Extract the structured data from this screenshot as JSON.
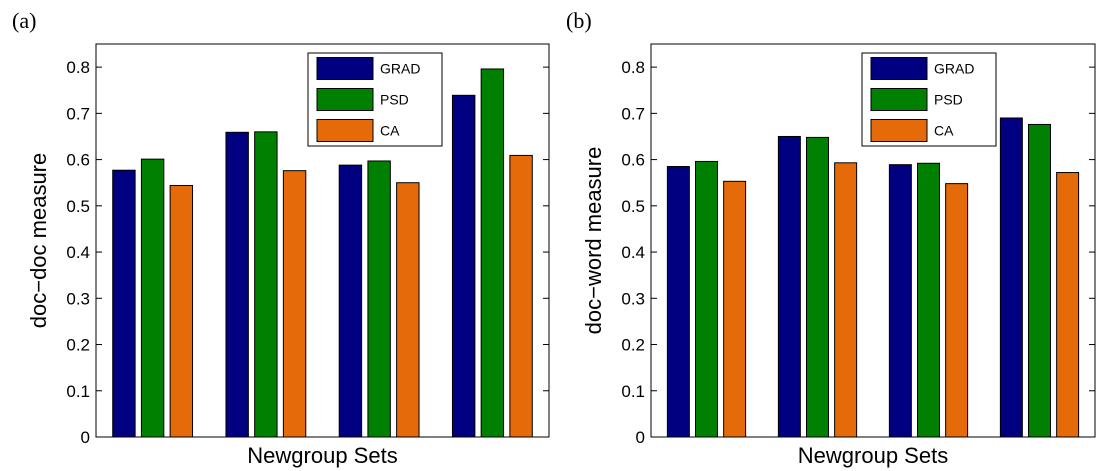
{
  "chart_data": [
    {
      "type": "bar",
      "panel_label": "(a)",
      "xlabel": "Newgroup Sets",
      "ylabel": "doc−doc measure",
      "ylim": [
        0,
        0.85
      ],
      "yticks": [
        "0",
        "0.1",
        "0.2",
        "0.3",
        "0.4",
        "0.5",
        "0.6",
        "0.7",
        "0.8"
      ],
      "categories": [
        "",
        "",
        "",
        ""
      ],
      "legend_position": "top-right",
      "grid": false,
      "series": [
        {
          "name": "GRAD",
          "color": "#000080",
          "values": [
            0.577,
            0.659,
            0.588,
            0.739
          ]
        },
        {
          "name": "PSD",
          "color": "#008000",
          "values": [
            0.601,
            0.66,
            0.597,
            0.796
          ]
        },
        {
          "name": "CA",
          "color": "#E56A0A",
          "values": [
            0.544,
            0.576,
            0.55,
            0.609
          ]
        }
      ]
    },
    {
      "type": "bar",
      "panel_label": "(b)",
      "xlabel": "Newgroup Sets",
      "ylabel": "doc−word measure",
      "ylim": [
        0,
        0.85
      ],
      "yticks": [
        "0",
        "0.1",
        "0.2",
        "0.3",
        "0.4",
        "0.5",
        "0.6",
        "0.7",
        "0.8"
      ],
      "categories": [
        "",
        "",
        "",
        ""
      ],
      "legend_position": "top-right",
      "grid": false,
      "series": [
        {
          "name": "GRAD",
          "color": "#000080",
          "values": [
            0.585,
            0.65,
            0.589,
            0.69
          ]
        },
        {
          "name": "PSD",
          "color": "#008000",
          "values": [
            0.596,
            0.648,
            0.592,
            0.676
          ]
        },
        {
          "name": "CA",
          "color": "#E56A0A",
          "values": [
            0.553,
            0.593,
            0.548,
            0.572
          ]
        }
      ]
    }
  ]
}
